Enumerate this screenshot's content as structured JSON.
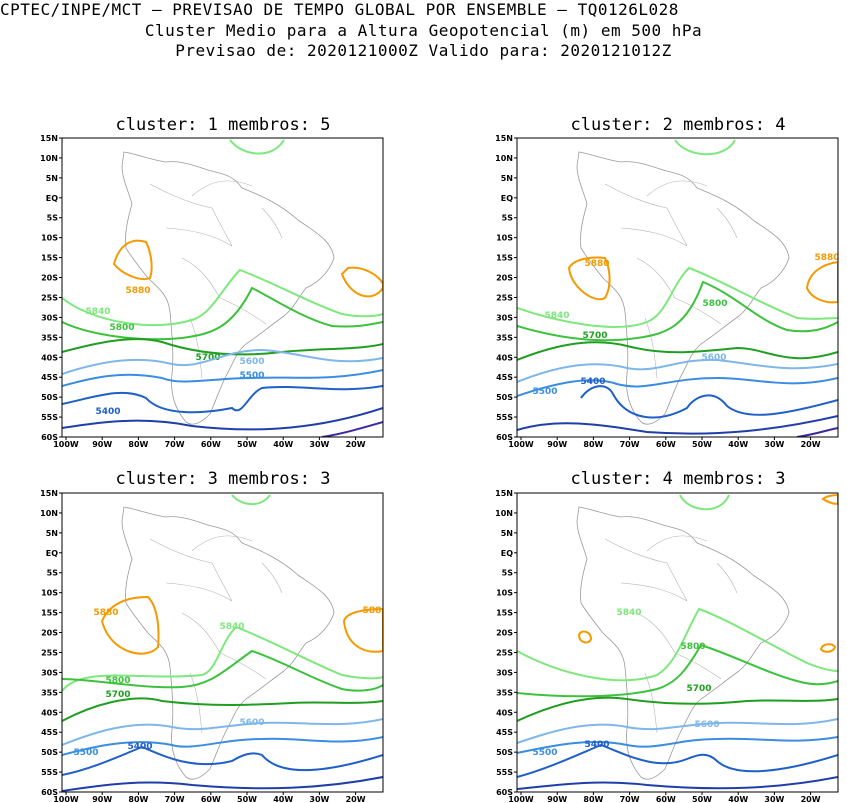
{
  "header": {
    "line1": "CPTEC/INPE/MCT – PREVISAO DE TEMPO GLOBAL POR ENSEMBLE – TQ0126L028",
    "line2": "Cluster Medio para a Altura Geopotencial (m) em 500 hPa",
    "line3": "Previsao de: 2020121000Z    Valido para: 2020121012Z"
  },
  "panels": [
    {
      "title": "cluster: 1   membros: 5"
    },
    {
      "title": "cluster: 2   membros: 4"
    },
    {
      "title": "cluster: 3   membros: 3"
    },
    {
      "title": "cluster: 4   membros: 3"
    }
  ],
  "axes": {
    "lat_ticks": [
      "15N",
      "10N",
      "5N",
      "EQ",
      "5S",
      "10S",
      "15S",
      "20S",
      "25S",
      "30S",
      "35S",
      "40S",
      "45S",
      "50S",
      "55S",
      "60S"
    ],
    "lon_ticks": [
      "100W",
      "90W",
      "80W",
      "70W",
      "60W",
      "50W",
      "40W",
      "30W",
      "20W"
    ]
  },
  "contour_colors": {
    "5880": "#f59a00",
    "5840": "#7ee87e",
    "5800": "#3cc23c",
    "5700": "#1f9e1f",
    "5600": "#7fb7ea",
    "5500": "#3a8de0",
    "5400": "#1e5fc8",
    "low": "#1f3fa8",
    "lowest": "#3a2a9c"
  },
  "contour_labels": {
    "p1": [
      "5840",
      "5880",
      "5840",
      "5800",
      "5800",
      "5700",
      "5600",
      "5500",
      "5500",
      "5400",
      "5400"
    ],
    "p2": [
      "5880",
      "5880",
      "5840",
      "5840",
      "5800",
      "5700",
      "5700",
      "5600",
      "5500",
      "5500",
      "5400",
      "5400"
    ],
    "p3": [
      "5880",
      "588",
      "5840",
      "5840",
      "5800",
      "5800",
      "5700",
      "5700",
      "5600",
      "5500",
      "5500",
      "5400",
      "5400"
    ],
    "p4": [
      "5840",
      "5840",
      "5800",
      "5700",
      "5600",
      "5500",
      "5500",
      "5400",
      "5400"
    ]
  }
}
